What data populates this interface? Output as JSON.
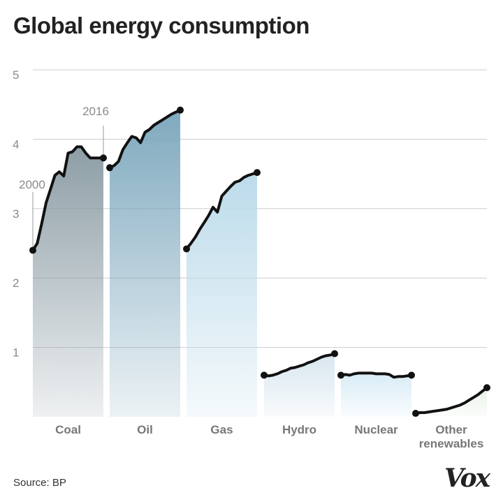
{
  "title": "Global energy consumption",
  "source": "Source: BP",
  "logo": "Vox",
  "colors": {
    "coal": "#8d9ea6",
    "oil": "#7fa9be",
    "gas": "#bcdbea",
    "hydro": "#d7e6ef",
    "nuclear": "#d8ecf6",
    "other": "#e9f1e6",
    "line": "#111111",
    "grid": "#cccccc"
  },
  "chart_data": {
    "type": "area",
    "title": "Global energy consumption",
    "xlabel": "",
    "ylabel": "",
    "ylim": [
      0,
      5
    ],
    "yticks": [
      1,
      2,
      3,
      4,
      5
    ],
    "grid": true,
    "x_range": [
      2000,
      2016
    ],
    "annotations": [
      {
        "text": "2000",
        "series": "Coal",
        "year": 2000
      },
      {
        "text": "2016",
        "series": "Coal",
        "year": 2016
      }
    ],
    "categories": [
      "Coal",
      "Oil",
      "Gas",
      "Hydro",
      "Nuclear",
      "Other renewables"
    ],
    "series": [
      {
        "name": "Coal",
        "label_lines": [
          "Coal"
        ],
        "color_key": "coal",
        "values": [
          2.4,
          2.5,
          2.78,
          3.08,
          3.28,
          3.48,
          3.53,
          3.47,
          3.8,
          3.82,
          3.89,
          3.89,
          3.8,
          3.73,
          3.73,
          3.73,
          3.73
        ]
      },
      {
        "name": "Oil",
        "label_lines": [
          "Oil"
        ],
        "color_key": "oil",
        "values": [
          3.59,
          3.62,
          3.68,
          3.85,
          3.95,
          4.04,
          4.02,
          3.95,
          4.1,
          4.14,
          4.2,
          4.24,
          4.28,
          4.32,
          4.36,
          4.39,
          4.42
        ]
      },
      {
        "name": "Gas",
        "label_lines": [
          "Gas"
        ],
        "color_key": "gas",
        "values": [
          2.42,
          2.5,
          2.59,
          2.7,
          2.8,
          2.9,
          3.02,
          2.95,
          3.18,
          3.25,
          3.32,
          3.38,
          3.4,
          3.45,
          3.48,
          3.5,
          3.52
        ]
      },
      {
        "name": "Hydro",
        "label_lines": [
          "Hydro"
        ],
        "color_key": "hydro",
        "values": [
          0.6,
          0.59,
          0.6,
          0.62,
          0.65,
          0.67,
          0.7,
          0.71,
          0.73,
          0.75,
          0.78,
          0.8,
          0.83,
          0.86,
          0.88,
          0.89,
          0.91
        ]
      },
      {
        "name": "Nuclear",
        "label_lines": [
          "Nuclear"
        ],
        "color_key": "nuclear",
        "values": [
          0.6,
          0.61,
          0.6,
          0.62,
          0.63,
          0.63,
          0.63,
          0.63,
          0.62,
          0.62,
          0.62,
          0.61,
          0.57,
          0.58,
          0.58,
          0.59,
          0.6
        ]
      },
      {
        "name": "Other renewables",
        "label_lines": [
          "Other",
          "renewables"
        ],
        "color_key": "other",
        "values": [
          0.05,
          0.06,
          0.06,
          0.07,
          0.08,
          0.09,
          0.1,
          0.11,
          0.13,
          0.15,
          0.17,
          0.2,
          0.24,
          0.28,
          0.32,
          0.37,
          0.42
        ]
      }
    ]
  }
}
